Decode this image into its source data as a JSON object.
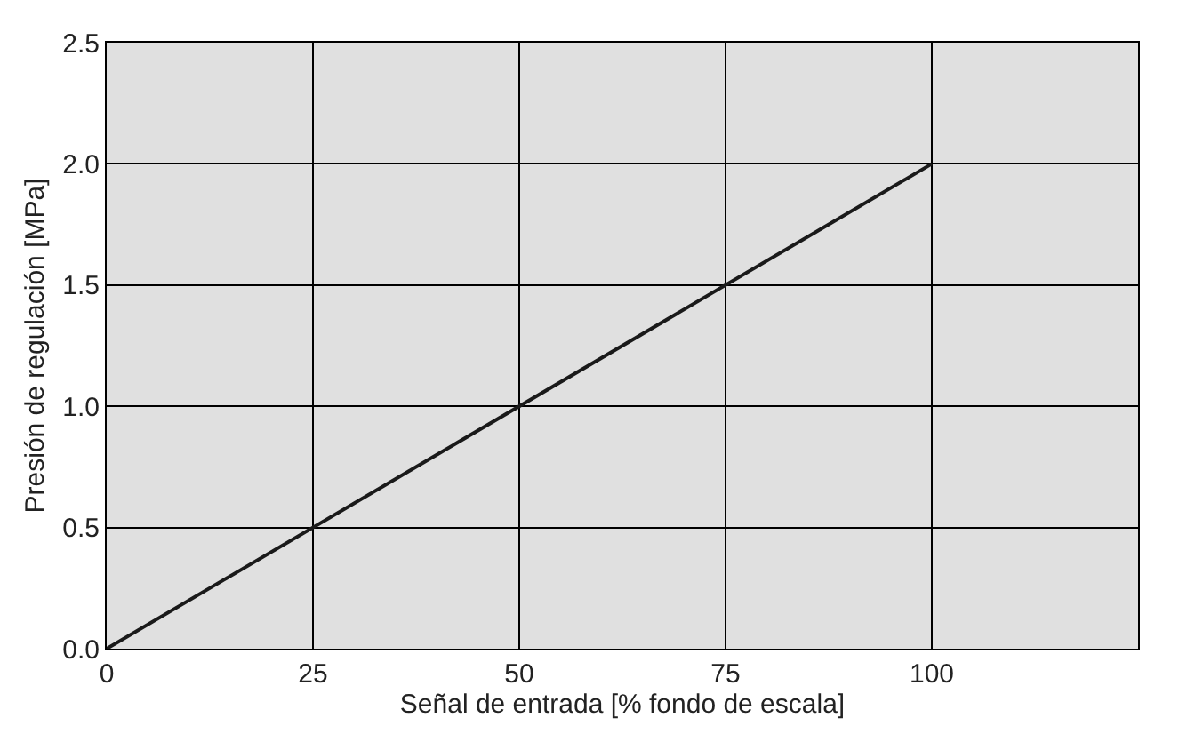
{
  "chart_data": {
    "type": "line",
    "xlabel": "Señal de entrada [% fondo de escala]",
    "ylabel": "Presión de regulación [MPa]",
    "x": [
      0,
      100
    ],
    "series": [
      {
        "color": "#1a1a1a",
        "values": [
          0.0,
          2.0
        ]
      }
    ],
    "xlim": [
      0,
      125
    ],
    "xticks": [
      0,
      25,
      50,
      75,
      100,
      {
        "value": 125,
        "label": null
      }
    ],
    "ylim": [
      0,
      2.5
    ],
    "yticks": [
      {
        "value": 0,
        "label": "0.0"
      },
      {
        "value": 0.5,
        "label": "0.5"
      },
      {
        "value": 1,
        "label": "1.0"
      },
      {
        "value": 1.5,
        "label": "1.5"
      },
      {
        "value": 2,
        "label": "2.0"
      },
      {
        "value": 2.5,
        "label": "2.5"
      }
    ],
    "grid": true,
    "marker": "none",
    "line_style": "solid"
  }
}
